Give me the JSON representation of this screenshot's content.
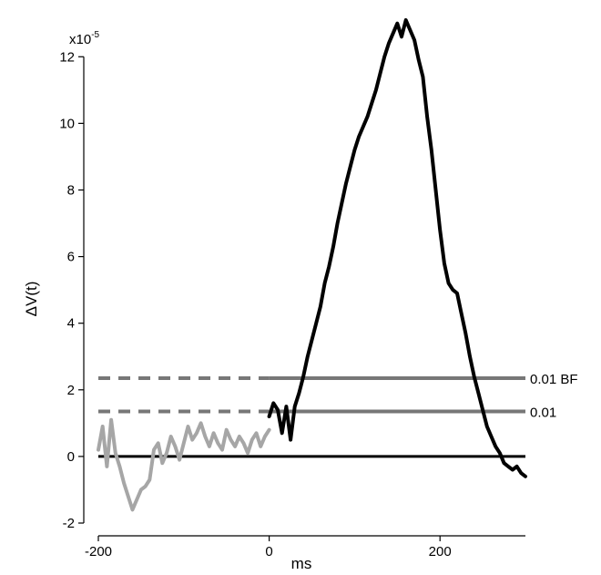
{
  "chart_data": {
    "type": "line",
    "xlabel": "ms",
    "ylabel": "ΔV(t)",
    "y_multiplier": "x10",
    "y_multiplier_exp": "-5",
    "xlim": [
      -200,
      300
    ],
    "ylim": [
      -2,
      12.5
    ],
    "x_ticks": [
      -200,
      0,
      200
    ],
    "x_tick_labels": [
      "-200",
      "0",
      "200"
    ],
    "y_ticks": [
      -2,
      0,
      2,
      4,
      6,
      8,
      10,
      12
    ],
    "y_tick_labels": [
      "-2",
      "0",
      "2",
      "4",
      "6",
      "8",
      "10",
      "12"
    ],
    "grid": false,
    "series": [
      {
        "segment": "baseline",
        "color": "#a6a6a6",
        "x": [
          -200,
          -195,
          -190,
          -185,
          -180,
          -175,
          -170,
          -165,
          -160,
          -155,
          -150,
          -145,
          -140,
          -135,
          -130,
          -125,
          -120,
          -115,
          -110,
          -105,
          -100,
          -95,
          -90,
          -85,
          -80,
          -75,
          -70,
          -65,
          -60,
          -55,
          -50,
          -45,
          -40,
          -35,
          -30,
          -25,
          -20,
          -15,
          -10,
          -5,
          0
        ],
        "y": [
          0.2,
          0.9,
          -0.3,
          1.1,
          0.1,
          -0.3,
          -0.8,
          -1.2,
          -1.6,
          -1.3,
          -1.0,
          -0.9,
          -0.7,
          0.2,
          0.4,
          -0.2,
          0.1,
          0.6,
          0.3,
          -0.1,
          0.4,
          0.9,
          0.5,
          0.7,
          1.0,
          0.6,
          0.3,
          0.7,
          0.4,
          0.2,
          0.8,
          0.5,
          0.3,
          0.6,
          0.4,
          0.1,
          0.5,
          0.7,
          0.3,
          0.6,
          0.8
        ]
      },
      {
        "segment": "response",
        "color": "#000000",
        "x": [
          0,
          5,
          10,
          15,
          20,
          25,
          30,
          35,
          40,
          45,
          50,
          55,
          60,
          65,
          70,
          75,
          80,
          85,
          90,
          95,
          100,
          105,
          110,
          115,
          120,
          125,
          130,
          135,
          140,
          145,
          150,
          155,
          160,
          165,
          170,
          175,
          180,
          185,
          190,
          195,
          200,
          205,
          210,
          215,
          220,
          225,
          230,
          235,
          240,
          245,
          250,
          255,
          260,
          265,
          270,
          275,
          280,
          285,
          290,
          295,
          300
        ],
        "y": [
          1.2,
          1.6,
          1.4,
          0.7,
          1.5,
          0.5,
          1.5,
          1.9,
          2.4,
          3.0,
          3.5,
          4.0,
          4.5,
          5.2,
          5.7,
          6.3,
          7.0,
          7.6,
          8.2,
          8.7,
          9.2,
          9.6,
          9.9,
          10.2,
          10.6,
          11.0,
          11.5,
          12.0,
          12.4,
          12.7,
          13.0,
          12.6,
          13.1,
          12.8,
          12.5,
          11.9,
          11.4,
          10.2,
          9.2,
          8.0,
          6.8,
          5.8,
          5.2,
          5.0,
          4.9,
          4.3,
          3.7,
          3.0,
          2.4,
          1.9,
          1.4,
          0.9,
          0.6,
          0.3,
          0.1,
          -0.2,
          -0.3,
          -0.4,
          -0.3,
          -0.5,
          -0.6
        ]
      }
    ],
    "zero_line": {
      "y": 0,
      "x_start": -200,
      "x_end": 300,
      "color": "#000000"
    },
    "thresholds": [
      {
        "label": "0.01 BF",
        "y": 2.35,
        "dashed_from": -200,
        "dashed_to": 0,
        "solid_to": 300,
        "color": "#777777"
      },
      {
        "label": "0.01",
        "y": 1.35,
        "dashed_from": -200,
        "dashed_to": 0,
        "solid_to": 300,
        "color": "#777777"
      }
    ]
  }
}
